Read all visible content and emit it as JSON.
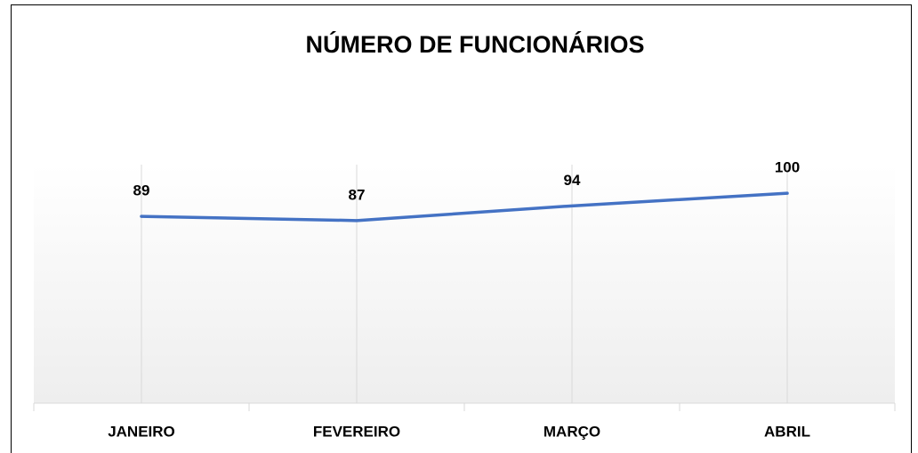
{
  "chart_data": {
    "type": "line",
    "title": "NÚMERO DE FUNCIONÁRIOS",
    "categories": [
      "JANEIRO",
      "FEVEREIRO",
      "MARÇO",
      "ABRIL"
    ],
    "values": [
      89,
      87,
      94,
      100
    ],
    "color": "#4472c4",
    "ylim": [
      0,
      120
    ]
  }
}
